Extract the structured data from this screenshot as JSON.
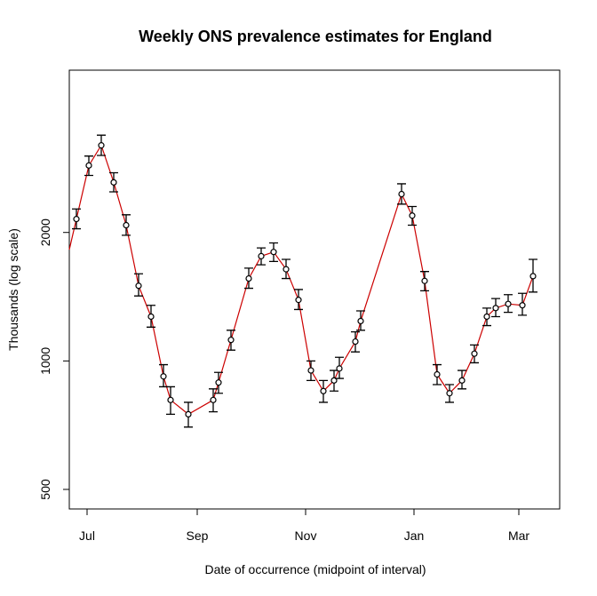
{
  "chart_data": {
    "type": "line",
    "title": "Weekly ONS prevalence estimates for England",
    "xlabel": "Date of occurrence (midpoint of interval)",
    "ylabel": "Thousands (log scale)",
    "y_scale": "log",
    "ylim": [
      450,
      4800
    ],
    "xlim": [
      "2021-06-21",
      "2022-03-24"
    ],
    "x_ticks": [
      {
        "date": "2021-07-01",
        "label": "Jul"
      },
      {
        "date": "2021-09-01",
        "label": "Sep"
      },
      {
        "date": "2021-11-01",
        "label": "Nov"
      },
      {
        "date": "2022-01-01",
        "label": "Jan"
      },
      {
        "date": "2022-03-01",
        "label": "Mar"
      }
    ],
    "y_ticks": [
      {
        "value": 500,
        "label": "500"
      },
      {
        "value": 1000,
        "label": "1000"
      },
      {
        "value": 2000,
        "label": "2000"
      }
    ],
    "grid": false,
    "line_color": "#cc0000",
    "marker_color": "#000000",
    "series": [
      {
        "points": [
          {
            "x": "2021-06-25",
            "y": 2150,
            "lo": 2040,
            "hi": 2270
          },
          {
            "x": "2021-07-02",
            "y": 2870,
            "lo": 2720,
            "hi": 3020
          },
          {
            "x": "2021-07-09",
            "y": 3200,
            "lo": 3030,
            "hi": 3380
          },
          {
            "x": "2021-07-16",
            "y": 2620,
            "lo": 2490,
            "hi": 2760
          },
          {
            "x": "2021-07-23",
            "y": 2080,
            "lo": 1970,
            "hi": 2200
          },
          {
            "x": "2021-07-30",
            "y": 1500,
            "lo": 1420,
            "hi": 1600
          },
          {
            "x": "2021-08-06",
            "y": 1270,
            "lo": 1200,
            "hi": 1350
          },
          {
            "x": "2021-08-13",
            "y": 920,
            "lo": 870,
            "hi": 980
          },
          {
            "x": "2021-08-17",
            "y": 810,
            "lo": 750,
            "hi": 870
          },
          {
            "x": "2021-08-27",
            "y": 750,
            "lo": 700,
            "hi": 800
          },
          {
            "x": "2021-09-10",
            "y": 810,
            "lo": 760,
            "hi": 860
          },
          {
            "x": "2021-09-13",
            "y": 890,
            "lo": 840,
            "hi": 940
          },
          {
            "x": "2021-09-20",
            "y": 1120,
            "lo": 1060,
            "hi": 1180
          },
          {
            "x": "2021-09-30",
            "y": 1560,
            "lo": 1480,
            "hi": 1650
          },
          {
            "x": "2021-10-07",
            "y": 1760,
            "lo": 1680,
            "hi": 1840
          },
          {
            "x": "2021-10-14",
            "y": 1800,
            "lo": 1710,
            "hi": 1890
          },
          {
            "x": "2021-10-21",
            "y": 1640,
            "lo": 1560,
            "hi": 1730
          },
          {
            "x": "2021-10-28",
            "y": 1390,
            "lo": 1320,
            "hi": 1470
          },
          {
            "x": "2021-11-04",
            "y": 950,
            "lo": 900,
            "hi": 1000
          },
          {
            "x": "2021-11-11",
            "y": 850,
            "lo": 800,
            "hi": 900
          },
          {
            "x": "2021-11-17",
            "y": 900,
            "lo": 850,
            "hi": 950
          },
          {
            "x": "2021-11-20",
            "y": 960,
            "lo": 910,
            "hi": 1020
          },
          {
            "x": "2021-11-29",
            "y": 1110,
            "lo": 1050,
            "hi": 1170
          },
          {
            "x": "2021-12-02",
            "y": 1240,
            "lo": 1180,
            "hi": 1310
          },
          {
            "x": "2021-12-25",
            "y": 2460,
            "lo": 2330,
            "hi": 2600
          },
          {
            "x": "2021-12-31",
            "y": 2190,
            "lo": 2080,
            "hi": 2300
          },
          {
            "x": "2022-01-07",
            "y": 1540,
            "lo": 1460,
            "hi": 1620
          },
          {
            "x": "2022-01-14",
            "y": 930,
            "lo": 880,
            "hi": 980
          },
          {
            "x": "2022-01-21",
            "y": 840,
            "lo": 800,
            "hi": 880
          },
          {
            "x": "2022-01-28",
            "y": 900,
            "lo": 860,
            "hi": 950
          },
          {
            "x": "2022-02-04",
            "y": 1040,
            "lo": 990,
            "hi": 1090
          },
          {
            "x": "2022-02-11",
            "y": 1270,
            "lo": 1210,
            "hi": 1330
          },
          {
            "x": "2022-02-16",
            "y": 1330,
            "lo": 1270,
            "hi": 1400
          },
          {
            "x": "2022-02-23",
            "y": 1360,
            "lo": 1300,
            "hi": 1430
          },
          {
            "x": "2022-03-03",
            "y": 1350,
            "lo": 1280,
            "hi": 1440
          },
          {
            "x": "2022-03-09",
            "y": 1580,
            "lo": 1450,
            "hi": 1730
          }
        ]
      }
    ]
  }
}
